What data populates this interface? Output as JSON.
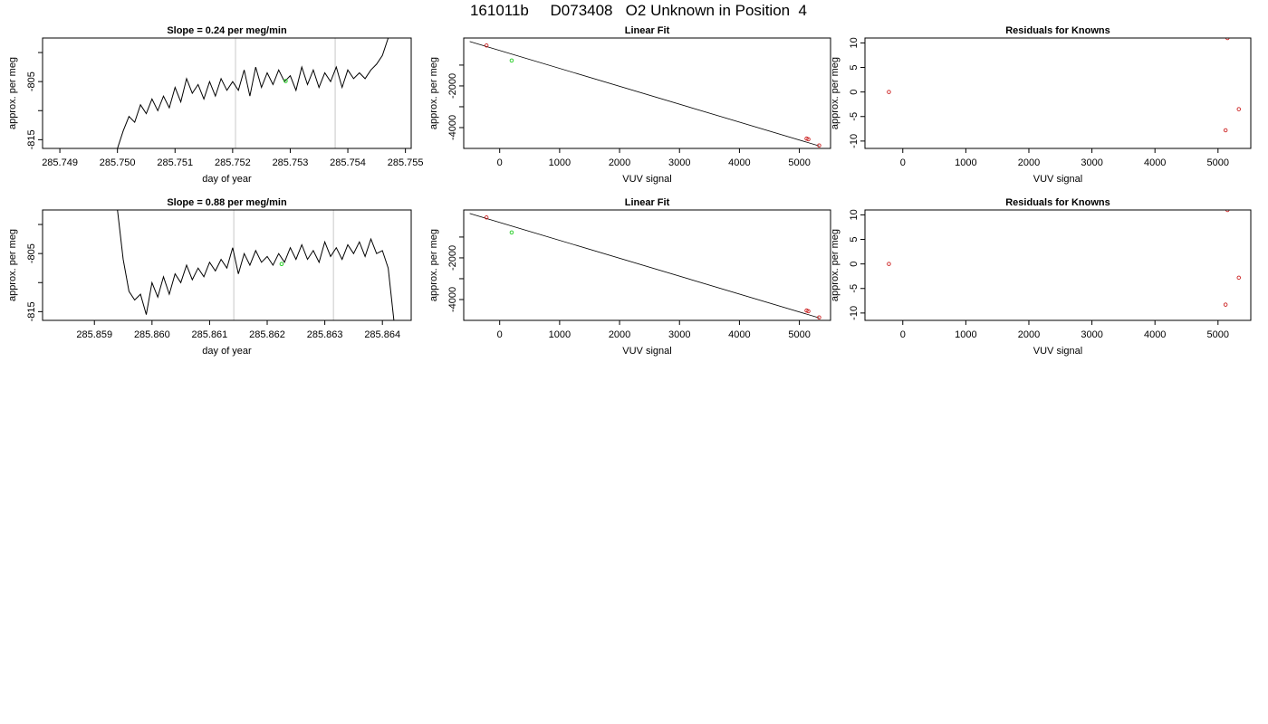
{
  "figure": {
    "title": "161011b     D073408   O2 Unknown in Position  4"
  },
  "chart_data": [
    {
      "panel": "row1-timeseries",
      "type": "line",
      "title": "Slope =  0.24  per meg/min",
      "xlabel": "day of year",
      "ylabel": "approx. per meg",
      "xlim": [
        285.7487,
        285.7551
      ],
      "ylim": [
        -816.5,
        -797.5
      ],
      "x_ticks": [
        "285.749",
        "285.750",
        "285.751",
        "285.752",
        "285.753",
        "285.754",
        "285.755"
      ],
      "x_tick_values": [
        285.749,
        285.75,
        285.751,
        285.752,
        285.753,
        285.754,
        285.755
      ],
      "y_ticks": [
        "-815",
        "-805"
      ],
      "y_tick_values": [
        -815,
        -805
      ],
      "y_minor_tick_values": [
        -810,
        -800
      ],
      "vlines": [
        285.75205,
        285.75378
      ],
      "highlight_point": {
        "x": 285.75292,
        "y": -804.9,
        "color": "#22cc22"
      },
      "series": [
        {
          "x": [
            285.75,
            285.7501,
            285.7502,
            285.7503,
            285.7504,
            285.7505,
            285.7506,
            285.7507,
            285.7508,
            285.7509,
            285.751,
            285.7511,
            285.7512,
            285.7513,
            285.7514,
            285.7515,
            285.7516,
            285.7517,
            285.7518,
            285.7519,
            285.752,
            285.7521,
            285.7522,
            285.7523,
            285.7524,
            285.7525,
            285.7526,
            285.7527,
            285.7528,
            285.7529,
            285.753,
            285.7531,
            285.7532,
            285.7533,
            285.7534,
            285.7535,
            285.7536,
            285.7537,
            285.7538,
            285.7539,
            285.754,
            285.7541,
            285.7542,
            285.7543,
            285.7544,
            285.7545,
            285.7546,
            285.7547,
            285.7548
          ],
          "values": [
            -816.5,
            -813.5,
            -811.0,
            -812.0,
            -809.0,
            -810.5,
            -808.0,
            -810.0,
            -807.5,
            -809.5,
            -806.0,
            -808.5,
            -804.5,
            -807.0,
            -805.5,
            -808.0,
            -805.0,
            -807.5,
            -804.5,
            -806.5,
            -805.0,
            -806.5,
            -803.0,
            -807.5,
            -802.5,
            -806.0,
            -803.5,
            -805.5,
            -803.0,
            -805.0,
            -804.0,
            -806.5,
            -802.5,
            -805.5,
            -803.0,
            -806.0,
            -803.5,
            -805.0,
            -802.5,
            -806.0,
            -803.0,
            -804.5,
            -803.5,
            -804.5,
            -803.0,
            -802.0,
            -800.5,
            -797.5,
            -797.0
          ]
        }
      ]
    },
    {
      "panel": "row1-linear-fit",
      "type": "scatter",
      "title": "Linear Fit",
      "xlabel": "VUV signal",
      "ylabel": "approx. per meg",
      "xlim": [
        -600,
        5520
      ],
      "ylim": [
        -5000,
        300
      ],
      "x_ticks": [
        "0",
        "1000",
        "2000",
        "3000",
        "4000",
        "5000"
      ],
      "x_tick_values": [
        0,
        1000,
        2000,
        3000,
        4000,
        5000
      ],
      "y_ticks": [
        "-2000",
        "-4000"
      ],
      "y_tick_values": [
        -2000,
        -4000
      ],
      "y_minor_tick_values": [
        -1000,
        -3000
      ],
      "fit_line": {
        "x": [
          -500,
          5330
        ],
        "y": [
          130,
          -4880
        ]
      },
      "series": [
        {
          "name": "knowns",
          "color": "#cc2222",
          "x": [
            -220,
            5120,
            5150,
            5330
          ],
          "values": [
            -60,
            -4530,
            -4560,
            -4860
          ]
        },
        {
          "name": "unknown",
          "color": "#22cc22",
          "x": [
            200
          ],
          "values": [
            -780
          ]
        }
      ]
    },
    {
      "panel": "row1-residuals",
      "type": "scatter",
      "title": "Residuals for Knowns",
      "xlabel": "VUV signal",
      "ylabel": "approx. per meg",
      "xlim": [
        -600,
        5520
      ],
      "ylim": [
        -11.5,
        11
      ],
      "x_ticks": [
        "0",
        "1000",
        "2000",
        "3000",
        "4000",
        "5000"
      ],
      "x_tick_values": [
        0,
        1000,
        2000,
        3000,
        4000,
        5000
      ],
      "y_ticks": [
        "10",
        "5",
        "0",
        "-5",
        "-10"
      ],
      "y_tick_values": [
        10,
        5,
        0,
        -5,
        -10
      ],
      "series": [
        {
          "name": "residuals",
          "color": "#cc2222",
          "x": [
            -220,
            5120,
            5150,
            5330
          ],
          "values": [
            0,
            -7.8,
            11,
            -3.5
          ]
        }
      ]
    },
    {
      "panel": "row2-timeseries",
      "type": "line",
      "title": "Slope =  0.88  per meg/min",
      "xlabel": "day of year",
      "ylabel": "approx. per meg",
      "xlim": [
        285.8581,
        285.8645
      ],
      "ylim": [
        -816.5,
        -797.5
      ],
      "x_ticks": [
        "285.859",
        "285.860",
        "285.861",
        "285.862",
        "285.863",
        "285.864"
      ],
      "x_tick_values": [
        285.859,
        285.86,
        285.861,
        285.862,
        285.863,
        285.864
      ],
      "y_ticks": [
        "-815",
        "-805"
      ],
      "y_tick_values": [
        -815,
        -805
      ],
      "y_minor_tick_values": [
        -810,
        -800
      ],
      "vlines": [
        285.86142,
        285.86315
      ],
      "highlight_point": {
        "x": 285.86225,
        "y": -806.8,
        "color": "#22cc22"
      },
      "series": [
        {
          "x": [
            285.8594,
            285.8595,
            285.8596,
            285.8597,
            285.8598,
            285.8599,
            285.86,
            285.8601,
            285.8602,
            285.8603,
            285.8604,
            285.8605,
            285.8606,
            285.8607,
            285.8608,
            285.8609,
            285.861,
            285.8611,
            285.8612,
            285.8613,
            285.8614,
            285.8615,
            285.8616,
            285.8617,
            285.8618,
            285.8619,
            285.862,
            285.8621,
            285.8622,
            285.8623,
            285.8624,
            285.8625,
            285.8626,
            285.8627,
            285.8628,
            285.8629,
            285.863,
            285.8631,
            285.8632,
            285.8633,
            285.8634,
            285.8635,
            285.8636,
            285.8637,
            285.8638,
            285.8639,
            285.864,
            285.8641,
            285.8642
          ],
          "values": [
            -797.5,
            -806.0,
            -811.5,
            -813.0,
            -812.0,
            -815.5,
            -810.0,
            -812.5,
            -809.0,
            -812.0,
            -808.5,
            -810.0,
            -807.0,
            -809.5,
            -807.5,
            -809.0,
            -806.5,
            -808.0,
            -806.0,
            -807.5,
            -804.0,
            -808.5,
            -805.0,
            -807.0,
            -804.5,
            -806.5,
            -805.5,
            -807.0,
            -805.0,
            -806.5,
            -804.0,
            -806.0,
            -803.5,
            -806.0,
            -804.5,
            -806.5,
            -803.0,
            -805.5,
            -804.0,
            -806.0,
            -803.5,
            -805.0,
            -803.0,
            -805.5,
            -802.5,
            -805.0,
            -804.5,
            -807.5,
            -816.5
          ]
        }
      ]
    },
    {
      "panel": "row2-linear-fit",
      "type": "scatter",
      "title": "Linear Fit",
      "xlabel": "VUV signal",
      "ylabel": "approx. per meg",
      "xlim": [
        -600,
        5520
      ],
      "ylim": [
        -5000,
        300
      ],
      "x_ticks": [
        "0",
        "1000",
        "2000",
        "3000",
        "4000",
        "5000"
      ],
      "x_tick_values": [
        0,
        1000,
        2000,
        3000,
        4000,
        5000
      ],
      "y_ticks": [
        "-2000",
        "-4000"
      ],
      "y_tick_values": [
        -2000,
        -4000
      ],
      "y_minor_tick_values": [
        -1000,
        -3000
      ],
      "fit_line": {
        "x": [
          -500,
          5330
        ],
        "y": [
          130,
          -4880
        ]
      },
      "series": [
        {
          "name": "knowns",
          "color": "#cc2222",
          "x": [
            -220,
            5120,
            5150,
            5330
          ],
          "values": [
            -60,
            -4530,
            -4560,
            -4860
          ]
        },
        {
          "name": "unknown",
          "color": "#22cc22",
          "x": [
            200
          ],
          "values": [
            -780
          ]
        }
      ]
    },
    {
      "panel": "row2-residuals",
      "type": "scatter",
      "title": "Residuals for Knowns",
      "xlabel": "VUV signal",
      "ylabel": "approx. per meg",
      "xlim": [
        -600,
        5520
      ],
      "ylim": [
        -11.5,
        11
      ],
      "x_ticks": [
        "0",
        "1000",
        "2000",
        "3000",
        "4000",
        "5000"
      ],
      "x_tick_values": [
        0,
        1000,
        2000,
        3000,
        4000,
        5000
      ],
      "y_ticks": [
        "10",
        "5",
        "0",
        "-5",
        "-10"
      ],
      "y_tick_values": [
        10,
        5,
        0,
        -5,
        -10
      ],
      "series": [
        {
          "name": "residuals",
          "color": "#cc2222",
          "x": [
            -220,
            5120,
            5150,
            5330
          ],
          "values": [
            0,
            -8.3,
            11,
            -2.8
          ]
        }
      ]
    }
  ]
}
